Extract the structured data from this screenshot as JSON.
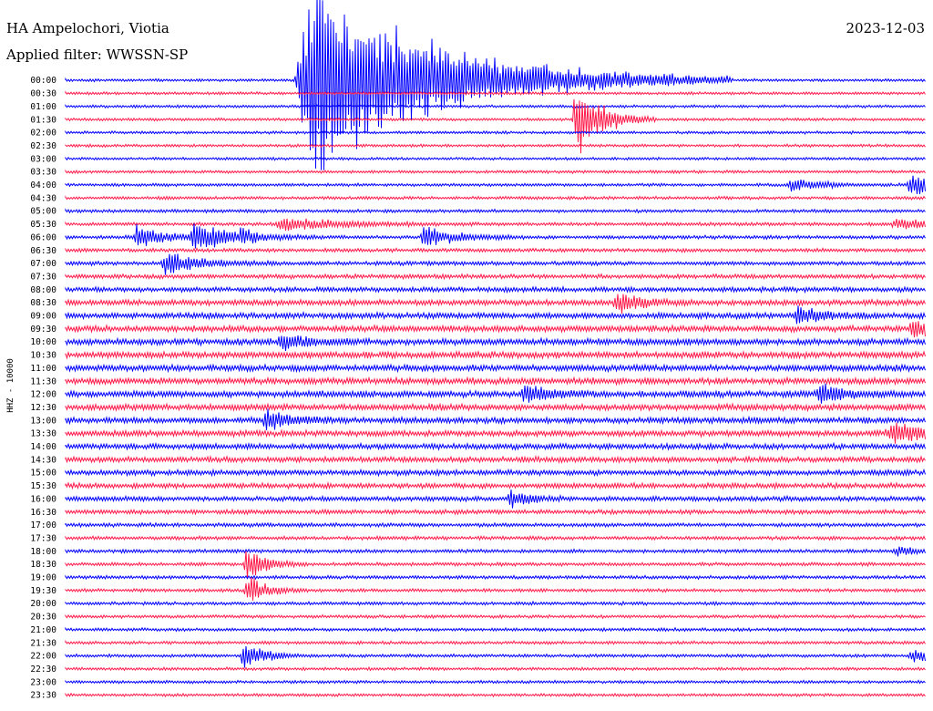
{
  "header": {
    "station": "HA Ampelochori, Viotia",
    "date": "2023-12-03",
    "filter_label": "Applied filter:",
    "filter_name": "WWSSN-SP"
  },
  "channel_label": "HHZ - 10000",
  "colors": {
    "trace_a": "#0000ff",
    "trace_b": "#ff1a4a"
  },
  "chart_data": {
    "type": "line",
    "title": "HA Ampelochori, Viotia",
    "ylabel": "HHZ - 10000",
    "xlabel": "",
    "row_interval_minutes": 30,
    "color_cycle": [
      "#0000ff",
      "#ff1a4a"
    ],
    "tick_labels": [
      "00:00",
      "00:30",
      "01:00",
      "01:30",
      "02:00",
      "02:30",
      "03:00",
      "03:30",
      "04:00",
      "04:30",
      "05:00",
      "05:30",
      "06:00",
      "06:30",
      "07:00",
      "07:30",
      "08:00",
      "08:30",
      "09:00",
      "09:30",
      "10:00",
      "10:30",
      "11:00",
      "11:30",
      "12:00",
      "12:30",
      "13:00",
      "13:30",
      "14:00",
      "14:30",
      "15:00",
      "15:30",
      "16:00",
      "16:30",
      "17:00",
      "17:30",
      "18:00",
      "18:30",
      "19:00",
      "19:30",
      "20:00",
      "20:30",
      "21:00",
      "21:30",
      "22:00",
      "22:30",
      "23:00",
      "23:30"
    ],
    "row_noise_level": [
      0.15,
      0.15,
      0.15,
      0.15,
      0.15,
      0.15,
      0.15,
      0.18,
      0.2,
      0.22,
      0.25,
      0.28,
      0.3,
      0.32,
      0.38,
      0.45,
      0.55,
      0.7,
      0.75,
      0.8,
      0.85,
      0.85,
      0.85,
      0.85,
      0.85,
      0.8,
      0.75,
      0.75,
      0.7,
      0.7,
      0.65,
      0.6,
      0.55,
      0.45,
      0.35,
      0.32,
      0.3,
      0.28,
      0.28,
      0.25,
      0.25,
      0.22,
      0.22,
      0.22,
      0.22,
      0.2,
      0.18,
      0.18
    ],
    "events": [
      {
        "row": 0,
        "minute": 8.2,
        "amp": 2.8,
        "dur": 0.8
      },
      {
        "row": 3,
        "minute": 17.8,
        "amp": 8.0,
        "dur": 0.8
      },
      {
        "row": 11,
        "minute": 7.6,
        "amp": 1.2,
        "dur": 2.0
      },
      {
        "row": 11,
        "minute": 29.0,
        "amp": 1.0,
        "dur": 1.5
      },
      {
        "row": 8,
        "minute": 29.5,
        "amp": 1.8,
        "dur": 1.2
      },
      {
        "row": 8,
        "minute": 25.3,
        "amp": 1.2,
        "dur": 1.0
      },
      {
        "row": 12,
        "minute": 2.5,
        "amp": 2.5,
        "dur": 0.8
      },
      {
        "row": 12,
        "minute": 4.5,
        "amp": 3.0,
        "dur": 1.3
      },
      {
        "row": 12,
        "minute": 6.1,
        "amp": 2.0,
        "dur": 0.6
      },
      {
        "row": 12,
        "minute": 12.5,
        "amp": 2.2,
        "dur": 1.0
      },
      {
        "row": 14,
        "minute": 3.5,
        "amp": 2.0,
        "dur": 1.2
      },
      {
        "row": 0,
        "minute": 8.6,
        "amp": 18.0,
        "dur": 4.2
      },
      {
        "row": 17,
        "minute": 19.2,
        "amp": 2.0,
        "dur": 0.8
      },
      {
        "row": 18,
        "minute": 25.5,
        "amp": 2.0,
        "dur": 0.7
      },
      {
        "row": 19,
        "minute": 29.5,
        "amp": 1.8,
        "dur": 0.7
      },
      {
        "row": 20,
        "minute": 7.5,
        "amp": 1.6,
        "dur": 0.8
      },
      {
        "row": 24,
        "minute": 16.0,
        "amp": 2.0,
        "dur": 0.7
      },
      {
        "row": 24,
        "minute": 26.3,
        "amp": 1.8,
        "dur": 0.8
      },
      {
        "row": 26,
        "minute": 7.0,
        "amp": 2.0,
        "dur": 0.8
      },
      {
        "row": 27,
        "minute": 28.8,
        "amp": 1.6,
        "dur": 2.0
      },
      {
        "row": 32,
        "minute": 15.5,
        "amp": 1.6,
        "dur": 0.6
      },
      {
        "row": 37,
        "minute": 6.3,
        "amp": 3.5,
        "dur": 0.6
      },
      {
        "row": 39,
        "minute": 6.3,
        "amp": 3.0,
        "dur": 0.6
      },
      {
        "row": 44,
        "minute": 6.2,
        "amp": 3.0,
        "dur": 0.6
      },
      {
        "row": 44,
        "minute": 29.5,
        "amp": 1.5,
        "dur": 0.8
      },
      {
        "row": 36,
        "minute": 29.0,
        "amp": 0.8,
        "dur": 0.6
      }
    ]
  }
}
